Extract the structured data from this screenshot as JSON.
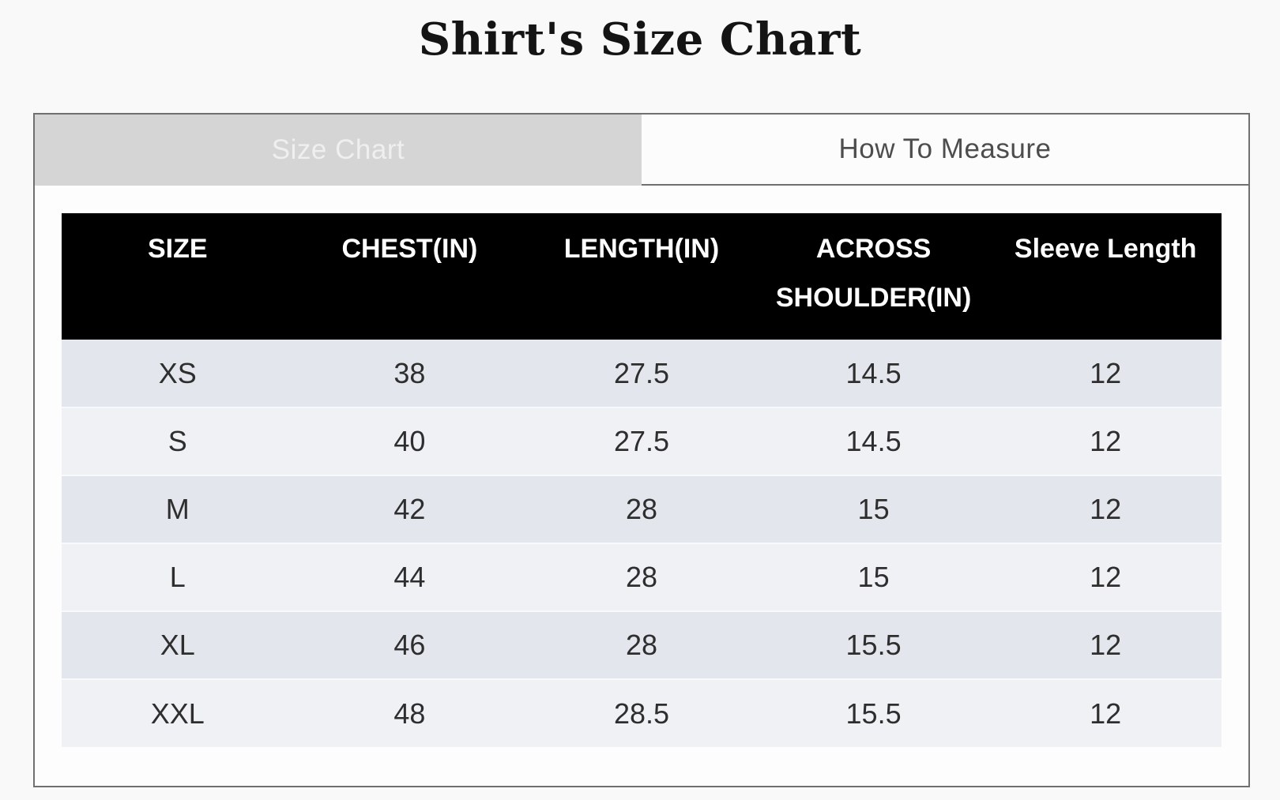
{
  "page": {
    "title": "Shirt's Size Chart"
  },
  "tabs": [
    {
      "label": "Size Chart",
      "active": true
    },
    {
      "label": "How To Measure",
      "active": false
    }
  ],
  "size_table": {
    "headers": [
      "SIZE",
      "CHEST(IN)",
      "LENGTH(IN)",
      "ACROSS SHOULDER(IN)",
      "Sleeve Length"
    ],
    "rows": [
      [
        "XS",
        "38",
        "27.5",
        "14.5",
        "12"
      ],
      [
        "S",
        "40",
        "27.5",
        "14.5",
        "12"
      ],
      [
        "M",
        "42",
        "28",
        "15",
        "12"
      ],
      [
        "L",
        "44",
        "28",
        "15",
        "12"
      ],
      [
        "XL",
        "46",
        "28",
        "15.5",
        "12"
      ],
      [
        "XXL",
        "48",
        "28.5",
        "15.5",
        "12"
      ]
    ]
  },
  "colors": {
    "page_bg": "#f9f9f9",
    "panel_bg": "#fdfdfd",
    "panel_border": "#707070",
    "tab_active_bg": "#d5d5d5",
    "tab_active_text": "#efefef",
    "tab_inactive_bg": "#fcfcfc",
    "tab_inactive_text": "#4d4d4d",
    "header_bg": "#000000",
    "header_text": "#ffffff",
    "row_dark": "#e3e6ed",
    "row_light": "#f0f1f5",
    "row_divider": "#f8f9fb",
    "body_text": "#2e2e2e",
    "title_text": "#141414"
  }
}
